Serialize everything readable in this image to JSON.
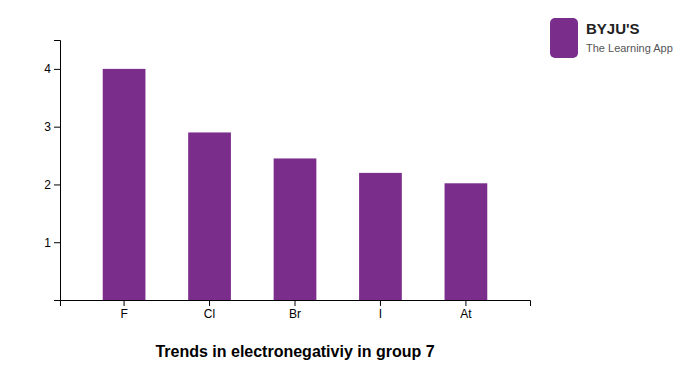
{
  "chart_data": {
    "type": "bar",
    "title": "Trends in electronegativiy in group 7",
    "categories": [
      "F",
      "Cl",
      "Br",
      "I",
      "At"
    ],
    "values": [
      4.0,
      2.9,
      2.45,
      2.2,
      2.02
    ],
    "color": "#7B2D8B",
    "ylim": [
      0,
      4.5
    ],
    "yticks": [
      1,
      2,
      3,
      4
    ],
    "grid": false,
    "annotations": [
      "BYJU'S",
      "The Learning App"
    ]
  }
}
